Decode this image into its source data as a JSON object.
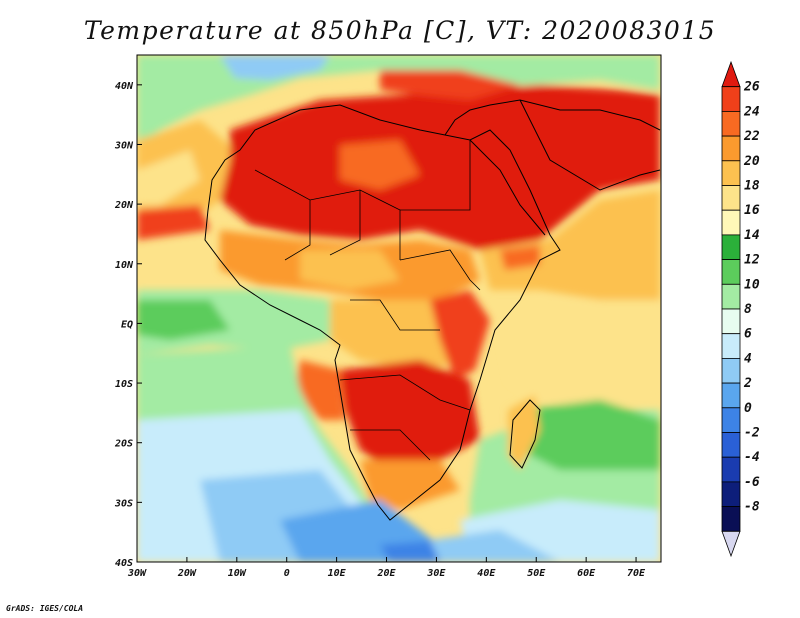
{
  "title": "Temperature at 850hPa [C], VT: 2020083015",
  "credit": "GrADS: IGES/COLA",
  "map": {
    "variable": "Temperature at 850hPa",
    "units": "C",
    "valid_time": "2020083015",
    "projection": "latlon",
    "lon_range": [
      -30,
      75
    ],
    "lat_range": [
      -40,
      45
    ],
    "lon_ticks": [
      "30W",
      "20W",
      "10W",
      "0",
      "10E",
      "20E",
      "30E",
      "40E",
      "50E",
      "60E",
      "70E"
    ],
    "lon_tick_values": [
      -30,
      -20,
      -10,
      0,
      10,
      20,
      30,
      40,
      50,
      60,
      70
    ],
    "lat_ticks": [
      "40N",
      "30N",
      "20N",
      "10N",
      "EQ",
      "10S",
      "20S",
      "30S",
      "40S"
    ],
    "lat_tick_values": [
      40,
      30,
      20,
      10,
      0,
      -10,
      -20,
      -30,
      -40
    ],
    "region": "Africa, Arabian Peninsula and surrounding oceans"
  },
  "colorbar": {
    "labels": [
      "26",
      "24",
      "22",
      "20",
      "18",
      "16",
      "14",
      "12",
      "10",
      "8",
      "6",
      "4",
      "2",
      "0",
      "-2",
      "-4",
      "-6",
      "-8"
    ],
    "levels": [
      26,
      24,
      22,
      20,
      18,
      16,
      14,
      12,
      10,
      8,
      6,
      4,
      2,
      0,
      -2,
      -4,
      -6,
      -8
    ],
    "colors_top_to_bottom": [
      "#e01a10",
      "#f0401a",
      "#f86a22",
      "#fb9a2e",
      "#fcc150",
      "#fde38a",
      "#fff8b8",
      "#2bb03a",
      "#5ccc5c",
      "#a3eba3",
      "#e7fdf0",
      "#c8ecfb",
      "#8fcbf5",
      "#5aa6ee",
      "#3d83e6",
      "#2a60d6",
      "#1a3cb0",
      "#0d1e7a",
      "#0a0f55",
      "#d8d8f0"
    ]
  }
}
